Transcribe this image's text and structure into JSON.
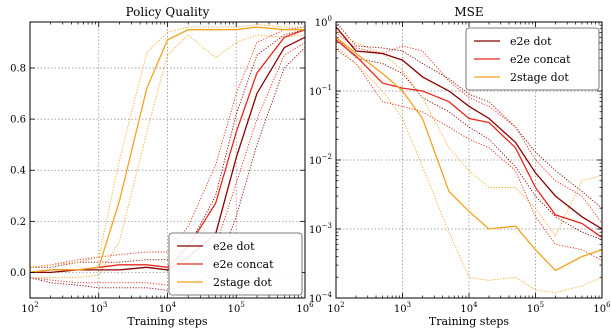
{
  "chart_data": [
    {
      "type": "line",
      "title": "Policy Quality",
      "xlabel": "Training steps",
      "ylabel": "",
      "xscale": "log",
      "xlim": [
        100,
        1000000
      ],
      "ylim": [
        -0.1,
        0.98
      ],
      "xticks": [
        100,
        1000,
        10000,
        100000,
        1000000
      ],
      "xtick_labels": [
        "10",
        "10",
        "10",
        "10",
        "10"
      ],
      "xtick_exponents": [
        "2",
        "3",
        "4",
        "5",
        "6"
      ],
      "yticks": [
        0.0,
        0.2,
        0.4,
        0.6,
        0.8
      ],
      "ytick_labels": [
        "0.0",
        "0.2",
        "0.4",
        "0.6",
        "0.8"
      ],
      "grid": true,
      "legend_position": "bottom-right",
      "x": [
        100,
        200,
        500,
        1000,
        2000,
        5000,
        10000,
        20000,
        50000,
        100000,
        200000,
        500000,
        1000000
      ],
      "series": [
        {
          "name": "e2e dot",
          "color": "#8b0000",
          "values": [
            0.0,
            0.0,
            0.01,
            0.01,
            0.01,
            0.02,
            0.01,
            0.06,
            0.15,
            0.45,
            0.7,
            0.88,
            0.92
          ],
          "lower": [
            -0.02,
            -0.04,
            -0.05,
            -0.06,
            -0.06,
            -0.06,
            -0.07,
            -0.05,
            0.0,
            0.22,
            0.5,
            0.8,
            0.88
          ],
          "upper": [
            0.02,
            0.02,
            0.04,
            0.04,
            0.04,
            0.05,
            0.05,
            0.1,
            0.3,
            0.62,
            0.85,
            0.93,
            0.95
          ]
        },
        {
          "name": "e2e concat",
          "color": "#e8281c",
          "values": [
            0.0,
            0.01,
            0.01,
            0.02,
            0.03,
            0.03,
            0.02,
            0.1,
            0.27,
            0.55,
            0.78,
            0.92,
            0.95
          ],
          "lower": [
            -0.02,
            -0.03,
            -0.04,
            -0.04,
            -0.04,
            -0.04,
            -0.05,
            -0.02,
            0.1,
            0.35,
            0.6,
            0.85,
            0.9
          ],
          "upper": [
            0.02,
            0.03,
            0.05,
            0.06,
            0.07,
            0.08,
            0.08,
            0.18,
            0.42,
            0.7,
            0.9,
            0.95,
            0.96
          ]
        },
        {
          "name": "2stage dot",
          "color": "#f5a21c",
          "values": [
            0.0,
            0.01,
            0.01,
            0.02,
            0.28,
            0.72,
            0.91,
            0.95,
            0.95,
            0.95,
            0.96,
            0.95,
            0.95
          ],
          "lower": [
            -0.02,
            -0.02,
            -0.02,
            -0.01,
            0.12,
            0.55,
            0.85,
            0.93,
            0.84,
            0.9,
            0.93,
            0.92,
            0.93
          ],
          "upper": [
            0.02,
            0.03,
            0.04,
            0.06,
            0.44,
            0.86,
            0.94,
            0.96,
            0.96,
            0.96,
            0.97,
            0.96,
            0.96
          ]
        }
      ]
    },
    {
      "type": "line",
      "title": "MSE",
      "xlabel": "Training steps",
      "ylabel": "",
      "xscale": "log",
      "yscale": "log",
      "xlim": [
        100,
        1000000
      ],
      "ylim": [
        0.0001,
        1
      ],
      "xticks": [
        100,
        1000,
        10000,
        100000,
        1000000
      ],
      "xtick_labels": [
        "10",
        "10",
        "10",
        "10",
        "10"
      ],
      "xtick_exponents": [
        "2",
        "3",
        "4",
        "5",
        "6"
      ],
      "yticks": [
        0.0001,
        0.001,
        0.01,
        0.1,
        1
      ],
      "ytick_labels": [
        "10",
        "10",
        "10",
        "10",
        "10"
      ],
      "ytick_exponents": [
        "−4",
        "−3",
        "−2",
        "−1",
        "0"
      ],
      "grid": true,
      "legend_position": "top-right",
      "x": [
        100,
        200,
        500,
        1000,
        2000,
        5000,
        10000,
        20000,
        50000,
        100000,
        200000,
        500000,
        1000000
      ],
      "series": [
        {
          "name": "e2e dot",
          "color": "#8b0000",
          "values": [
            0.85,
            0.38,
            0.35,
            0.28,
            0.16,
            0.1,
            0.06,
            0.04,
            0.018,
            0.0065,
            0.003,
            0.0015,
            0.001
          ],
          "lower": [
            0.6,
            0.3,
            0.25,
            0.18,
            0.08,
            0.05,
            0.03,
            0.02,
            0.008,
            0.003,
            0.0015,
            0.0009,
            0.0007
          ],
          "upper": [
            1.0,
            0.45,
            0.42,
            0.38,
            0.25,
            0.15,
            0.09,
            0.07,
            0.03,
            0.013,
            0.007,
            0.0035,
            0.002
          ]
        },
        {
          "name": "e2e concat",
          "color": "#e8281c",
          "values": [
            0.55,
            0.32,
            0.13,
            0.11,
            0.1,
            0.07,
            0.04,
            0.035,
            0.015,
            0.004,
            0.0016,
            0.0012,
            0.00075
          ],
          "lower": [
            0.4,
            0.25,
            0.07,
            0.06,
            0.05,
            0.03,
            0.02,
            0.015,
            0.007,
            0.0015,
            0.0006,
            0.0005,
            0.00035
          ],
          "upper": [
            0.7,
            0.42,
            0.35,
            0.45,
            0.38,
            0.14,
            0.08,
            0.06,
            0.03,
            0.01,
            0.005,
            0.003,
            0.0012
          ]
        },
        {
          "name": "2stage dot",
          "color": "#f5a21c",
          "values": [
            0.6,
            0.35,
            0.18,
            0.1,
            0.04,
            0.0035,
            0.0018,
            0.001,
            0.0011,
            0.0005,
            0.00025,
            0.0004,
            0.0005
          ],
          "lower": [
            0.45,
            0.25,
            0.1,
            0.04,
            0.008,
            0.0009,
            0.0002,
            0.00018,
            0.0002,
            0.00013,
            0.00012,
            0.00015,
            0.0002
          ],
          "upper": [
            0.75,
            0.5,
            0.35,
            0.2,
            0.08,
            0.015,
            0.007,
            0.004,
            0.004,
            0.002,
            0.0008,
            0.005,
            0.006
          ]
        }
      ]
    }
  ]
}
